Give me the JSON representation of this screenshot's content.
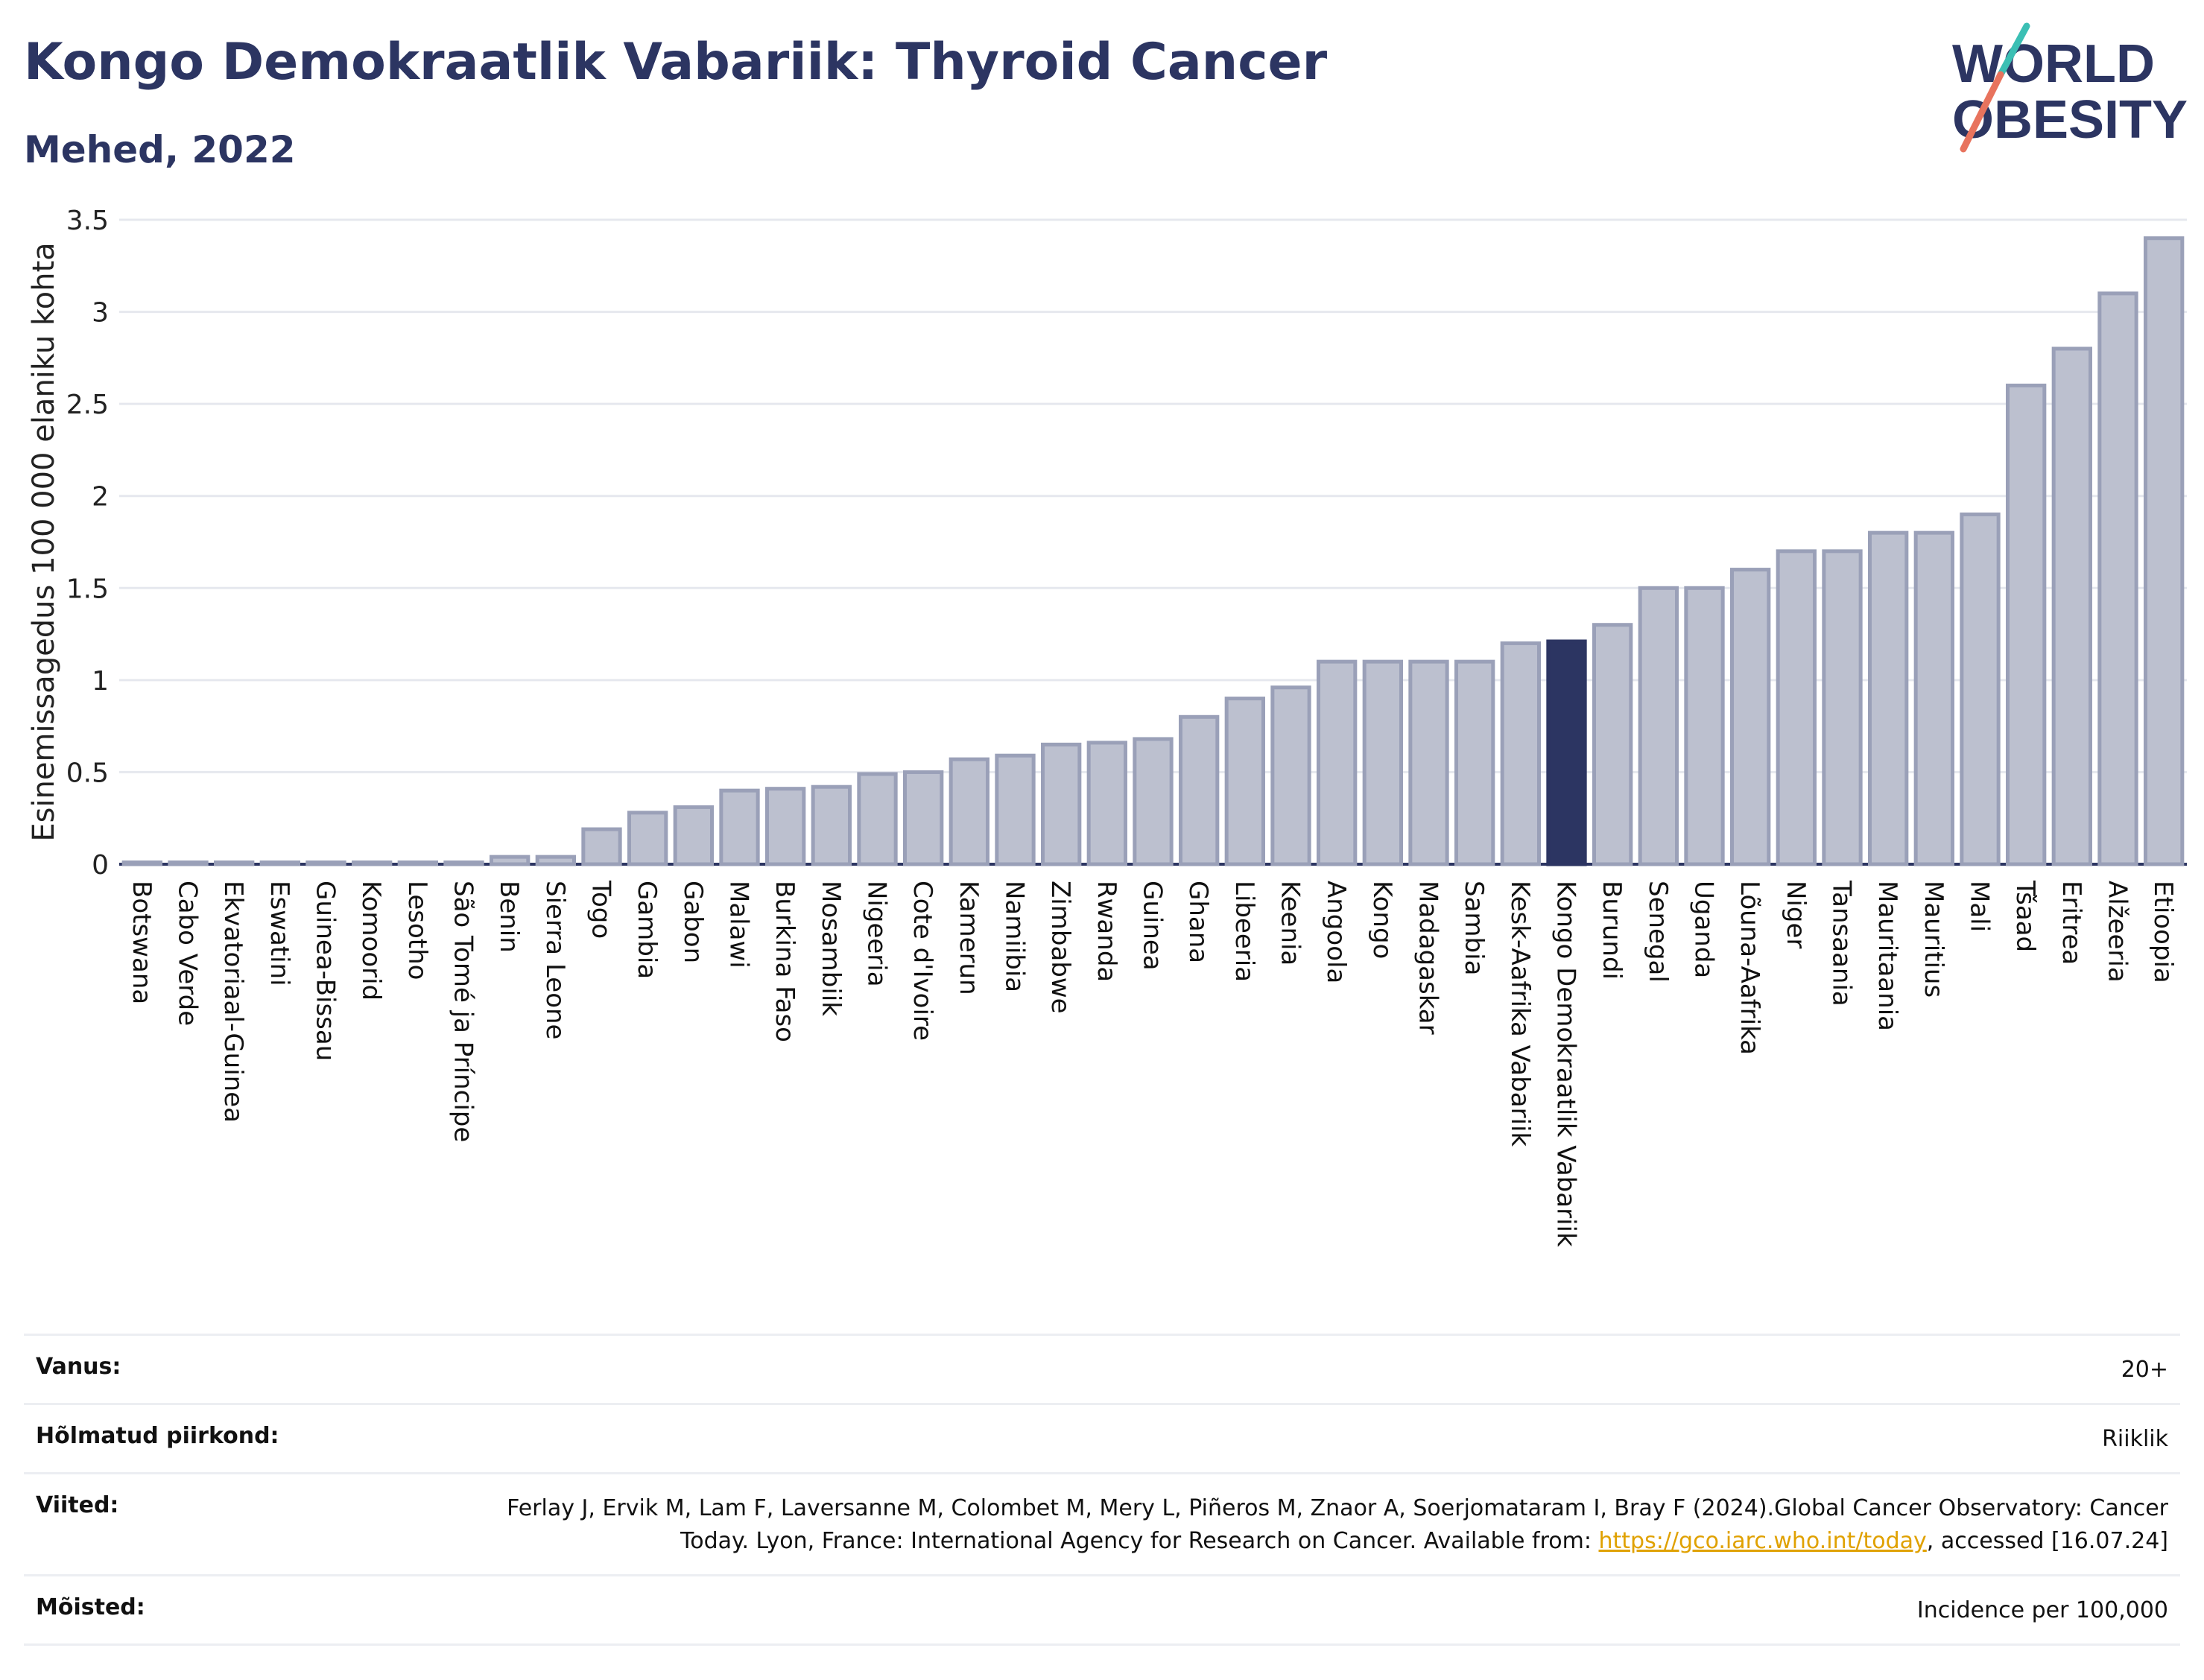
{
  "title": "Kongo Demokraatlik Vabariik: Thyroid Cancer",
  "subtitle": "Mehed, 2022",
  "logo": {
    "line1": "WORLD",
    "line2": "OBESITY",
    "accent_teal": "#3bbfb4",
    "accent_coral": "#e8735d"
  },
  "colors": {
    "bar": "#bcc0cf",
    "bar_stroke": "#9aa0b8",
    "highlight": "#2c3562",
    "grid": "#e6e8ee"
  },
  "chart_data": {
    "type": "bar",
    "ylabel": "Esinemissagedus 100 000 elaniku kohta",
    "ylim": [
      0,
      3.5
    ],
    "yticks": [
      "0",
      "0.5",
      "1",
      "1.5",
      "2",
      "2.5",
      "3",
      "3.5"
    ],
    "highlight": "Kongo Demokraatlik Vabariik",
    "categories": [
      "Botswana",
      "Cabo Verde",
      "Ekvatoriaal-Guinea",
      "Eswatini",
      "Guinea-Bissau",
      "Komoorid",
      "Lesotho",
      "São Tomé ja Príncipe",
      "Benin",
      "Sierra Leone",
      "Togo",
      "Gambia",
      "Gabon",
      "Malawi",
      "Burkina Faso",
      "Mosambiik",
      "Nigeeria",
      "Cote d'Ivoire",
      "Kamerun",
      "Namiibia",
      "Zimbabwe",
      "Rwanda",
      "Guinea",
      "Ghana",
      "Libeeria",
      "Keenia",
      "Angoola",
      "Kongo",
      "Madagaskar",
      "Sambia",
      "Kesk-Aafrika Vabariik",
      "Kongo Demokraatlik Vabariik",
      "Burundi",
      "Senegal",
      "Uganda",
      "Lõuna-Aafrika",
      "Niger",
      "Tansaania",
      "Mauritaania",
      "Mauritius",
      "Mali",
      "Tšaad",
      "Eritrea",
      "Alžeeria",
      "Etioopia"
    ],
    "values": [
      0.01,
      0.01,
      0.01,
      0.01,
      0.01,
      0.01,
      0.01,
      0.01,
      0.04,
      0.04,
      0.19,
      0.28,
      0.31,
      0.4,
      0.41,
      0.42,
      0.49,
      0.5,
      0.57,
      0.59,
      0.65,
      0.66,
      0.68,
      0.8,
      0.9,
      0.96,
      1.1,
      1.1,
      1.1,
      1.1,
      1.2,
      1.21,
      1.3,
      1.5,
      1.5,
      1.6,
      1.7,
      1.7,
      1.8,
      1.8,
      1.9,
      2.6,
      2.8,
      3.1,
      3.4
    ]
  },
  "info": [
    {
      "key": "Vanus:",
      "value": "20+"
    },
    {
      "key": "Hõlmatud piirkond:",
      "value": "Riiklik"
    },
    {
      "key": "Viited:",
      "value_pre": "Ferlay J, Ervik M, Lam F, Laversanne M, Colombet M, Mery L, Piñeros M, Znaor A, Soerjomataram I, Bray F (2024).Global Cancer Observatory: Cancer Today. Lyon, France: International Agency for Research on Cancer. Available from: ",
      "link": "https://gco.iarc.who.int/today",
      "value_post": ", accessed [16.07.24]"
    },
    {
      "key": "Mõisted:",
      "value": "Incidence per 100,000"
    }
  ]
}
